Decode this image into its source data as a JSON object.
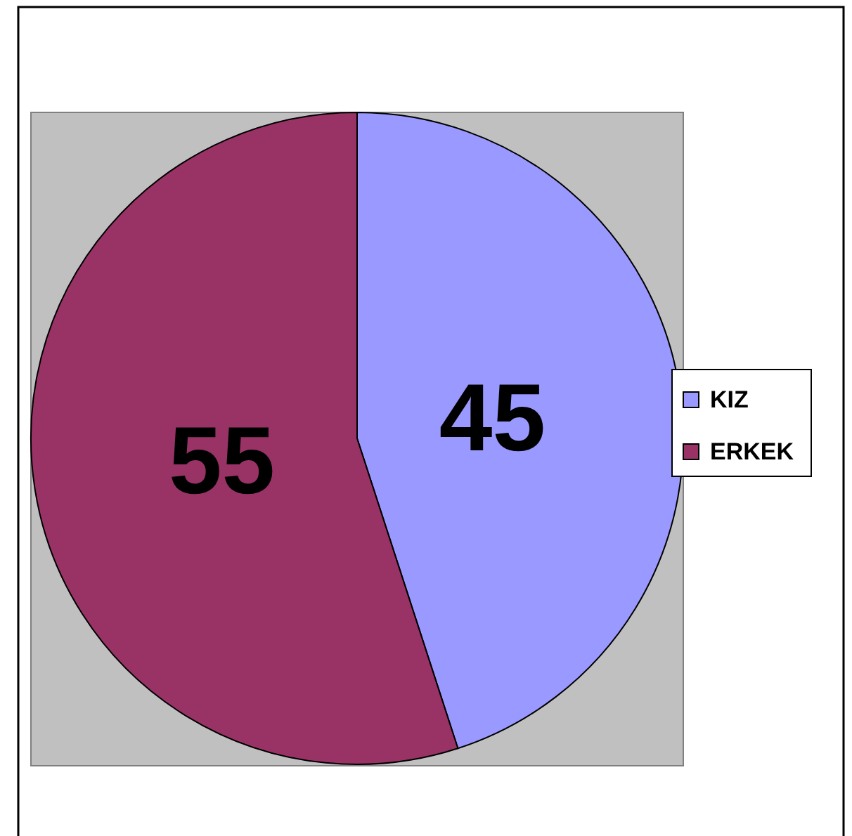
{
  "chart_data": {
    "type": "pie",
    "categories": [
      "KIZ",
      "ERKEK"
    ],
    "values": [
      45,
      55
    ],
    "colors": [
      "#9999ff",
      "#993366"
    ],
    "data_labels": true,
    "legend": "right"
  }
}
